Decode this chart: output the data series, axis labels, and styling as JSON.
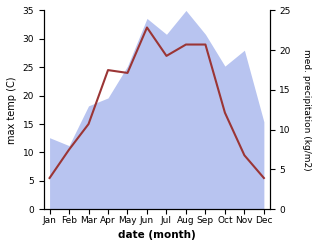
{
  "months": [
    "Jan",
    "Feb",
    "Mar",
    "Apr",
    "May",
    "Jun",
    "Jul",
    "Aug",
    "Sep",
    "Oct",
    "Nov",
    "Dec"
  ],
  "temperature": [
    5.5,
    10.5,
    15.0,
    24.5,
    24.0,
    32.0,
    27.0,
    29.0,
    29.0,
    17.0,
    9.5,
    5.5
  ],
  "precipitation": [
    9,
    8,
    13,
    14,
    18,
    24,
    22,
    25,
    22,
    18,
    20,
    11
  ],
  "temp_color": "#9b3535",
  "precip_color": "#b8c4f0",
  "temp_ylim": [
    0,
    35
  ],
  "precip_ylim": [
    0,
    25
  ],
  "temp_yticks": [
    0,
    5,
    10,
    15,
    20,
    25,
    30,
    35
  ],
  "precip_yticks": [
    0,
    5,
    10,
    15,
    20,
    25
  ],
  "xlabel": "date (month)",
  "ylabel_left": "max temp (C)",
  "ylabel_right": "med. precipitation (kg/m2)",
  "background_color": "#ffffff",
  "fig_width": 3.18,
  "fig_height": 2.47,
  "dpi": 100
}
